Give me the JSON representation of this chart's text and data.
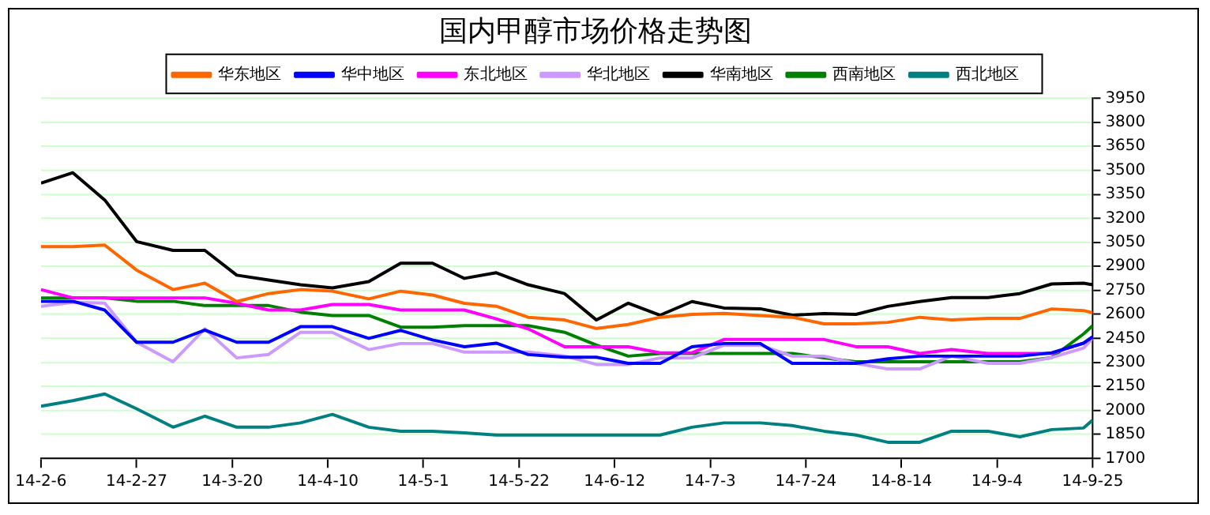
{
  "chart_data": {
    "type": "line",
    "title": "国内甲醇市场价格走势图",
    "x": [
      "--02-06",
      "--02-13",
      "--02-20",
      "--02-27",
      "--03-07",
      "--03-14",
      "--03-21",
      "--03-28",
      "--04-04",
      "--04-11",
      "--04-19",
      "--04-26",
      "--05-03",
      "--05-10",
      "--05-17",
      "--05-24",
      "--06-01",
      "--06-08",
      "--06-15",
      "--06-22",
      "--06-29",
      "--07-06",
      "--07-14",
      "--07-21",
      "--07-28",
      "--08-04",
      "--08-11",
      "--08-18",
      "--08-25",
      "--09-02",
      "--09-09",
      "--09-16",
      "--09-23",
      "--09-25"
    ],
    "series": [
      {
        "name": "华东地区",
        "axis": "y2",
        "color": "#ff6600",
        "values": [
          3023,
          3023,
          3033,
          2877,
          2755,
          2795,
          2680,
          2730,
          2755,
          2745,
          2697,
          2745,
          2721,
          2669,
          2651,
          2582,
          2565,
          2512,
          2537,
          2582,
          2600,
          2606,
          2593,
          2582,
          2541,
          2541,
          2550,
          2582,
          2565,
          2575,
          2575,
          2634,
          2624,
          2610
        ]
      },
      {
        "name": "华中地区",
        "axis": "y2",
        "color": "#0000ff",
        "values": [
          2682,
          2682,
          2627,
          2426,
          2426,
          2502,
          2426,
          2426,
          2523,
          2523,
          2450,
          2500,
          2440,
          2398,
          2420,
          2349,
          2332,
          2332,
          2294,
          2294,
          2398,
          2418,
          2418,
          2294,
          2294,
          2294,
          2322,
          2339,
          2339,
          2339,
          2339,
          2360,
          2420,
          2460
        ]
      },
      {
        "name": "东北地区",
        "axis": "y2",
        "color": "#ff00ff",
        "values": [
          2755,
          2703,
          2703,
          2703,
          2703,
          2703,
          2669,
          2627,
          2627,
          2662,
          2662,
          2627,
          2627,
          2627,
          2572,
          2510,
          2398,
          2398,
          2398,
          2360,
          2360,
          2443,
          2443,
          2443,
          2443,
          2398,
          2398,
          2356,
          2380,
          2356,
          2356,
          2356,
          2420,
          2460
        ]
      },
      {
        "name": "华北地区",
        "axis": "y2",
        "color": "#cc99ff",
        "values": [
          2651,
          2675,
          2670,
          2426,
          2304,
          2510,
          2328,
          2350,
          2488,
          2488,
          2380,
          2418,
          2418,
          2364,
          2364,
          2364,
          2340,
          2287,
          2287,
          2328,
          2328,
          2408,
          2408,
          2339,
          2339,
          2294,
          2259,
          2259,
          2339,
          2294,
          2294,
          2330,
          2390,
          2450
        ]
      },
      {
        "name": "华南地区",
        "axis": "y2",
        "color": "#000000",
        "values": [
          3420,
          3485,
          3315,
          3055,
          3000,
          3000,
          2845,
          2815,
          2785,
          2765,
          2805,
          2920,
          2920,
          2825,
          2860,
          2785,
          2730,
          2565,
          2670,
          2595,
          2680,
          2640,
          2635,
          2595,
          2605,
          2600,
          2650,
          2680,
          2705,
          2705,
          2730,
          2790,
          2795,
          2785
        ]
      },
      {
        "name": "西南地区",
        "axis": "y2",
        "color": "#008000",
        "values": [
          2703,
          2703,
          2703,
          2682,
          2682,
          2655,
          2655,
          2655,
          2614,
          2593,
          2593,
          2520,
          2520,
          2530,
          2530,
          2530,
          2488,
          2408,
          2339,
          2356,
          2356,
          2356,
          2356,
          2356,
          2328,
          2304,
          2304,
          2304,
          2304,
          2304,
          2304,
          2330,
          2478,
          2530
        ]
      },
      {
        "name": "西北地区",
        "axis": "y2",
        "color": "#008080",
        "values": [
          2026,
          2061,
          2103,
          2010,
          1895,
          1964,
          1895,
          1895,
          1922,
          1975,
          1895,
          1870,
          1870,
          1860,
          1846,
          1846,
          1846,
          1846,
          1846,
          1846,
          1895,
          1922,
          1922,
          1905,
          1870,
          1846,
          1801,
          1801,
          1870,
          1870,
          1835,
          1880,
          1890,
          1940
        ]
      }
    ],
    "xlim": [
      "--02-06",
      "--09-25"
    ],
    "xticks": [
      {
        "value": "--02-06",
        "label": "14-2-6"
      },
      {
        "value": "--02-27",
        "label": "14-2-27"
      },
      {
        "value": "--03-20",
        "label": "14-3-20"
      },
      {
        "value": "--04-10",
        "label": "14-4-10"
      },
      {
        "value": "--05-01",
        "label": "14-5-1"
      },
      {
        "value": "--05-22",
        "label": "14-5-22"
      },
      {
        "value": "--06-12",
        "label": "14-6-12"
      },
      {
        "value": "--07-03",
        "label": "14-7-3"
      },
      {
        "value": "--07-24",
        "label": "14-7-24"
      },
      {
        "value": "--08-14",
        "label": "14-8-14"
      },
      {
        "value": "--09-04",
        "label": "14-9-4"
      },
      {
        "value": "--09-25",
        "label": "14-9-25"
      }
    ],
    "y2lim": [
      1700,
      3950
    ],
    "y2ticks": [
      1700,
      1850,
      2000,
      2150,
      2300,
      2450,
      2600,
      2750,
      2900,
      3050,
      3200,
      3350,
      3500,
      3650,
      3800,
      3950
    ],
    "grid": "y",
    "legend": "top",
    "marker": "none",
    "line_style": "solid"
  }
}
